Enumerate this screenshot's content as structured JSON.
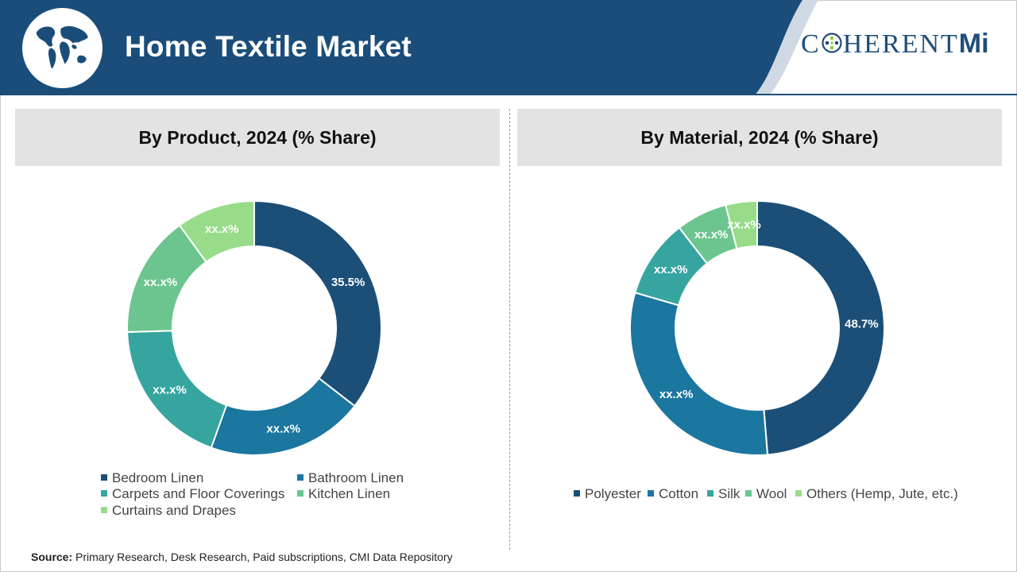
{
  "header": {
    "title": "Home Textile Market",
    "logo_prefix": "C",
    "logo_suffix": "HERENT",
    "logo_mi": "Mi",
    "bg_color": "#1a4d7a",
    "icons": [
      "globe-icon"
    ]
  },
  "chart_data": [
    {
      "type": "pie",
      "title": "By Product, 2024 (% Share)",
      "donut": true,
      "categories": [
        "Bedroom Linen",
        "Bathroom Linen",
        "Carpets and Floor Coverings",
        "Kitchen Linen",
        "Curtains and Drapes"
      ],
      "values": [
        35.5,
        20.0,
        19.0,
        15.5,
        10.0
      ],
      "data_labels": [
        "35.5%",
        "xx.x%",
        "xx.x%",
        "xx.x%",
        "xx.x%"
      ],
      "colors": [
        "#1b4f78",
        "#1b76a0",
        "#36a5a0",
        "#6cc58e",
        "#98dc89"
      ],
      "legend_position": "bottom"
    },
    {
      "type": "pie",
      "title": "By Material, 2024 (% Share)",
      "donut": true,
      "categories": [
        "Polyester",
        "Cotton",
        "Silk",
        "Wool",
        "Others (Hemp, Jute, etc.)"
      ],
      "values": [
        48.7,
        30.8,
        10.0,
        6.5,
        4.0
      ],
      "data_labels": [
        "48.7%",
        "xx.x%",
        "xx.x%",
        "xx.x%",
        "xx.x%"
      ],
      "colors": [
        "#1b4f78",
        "#1b76a0",
        "#36a5a0",
        "#6cc58e",
        "#98dc89"
      ],
      "legend_position": "bottom"
    }
  ],
  "source": {
    "label": "Source:",
    "text": " Primary Research, Desk Research, Paid subscriptions, CMI Data Repository"
  }
}
